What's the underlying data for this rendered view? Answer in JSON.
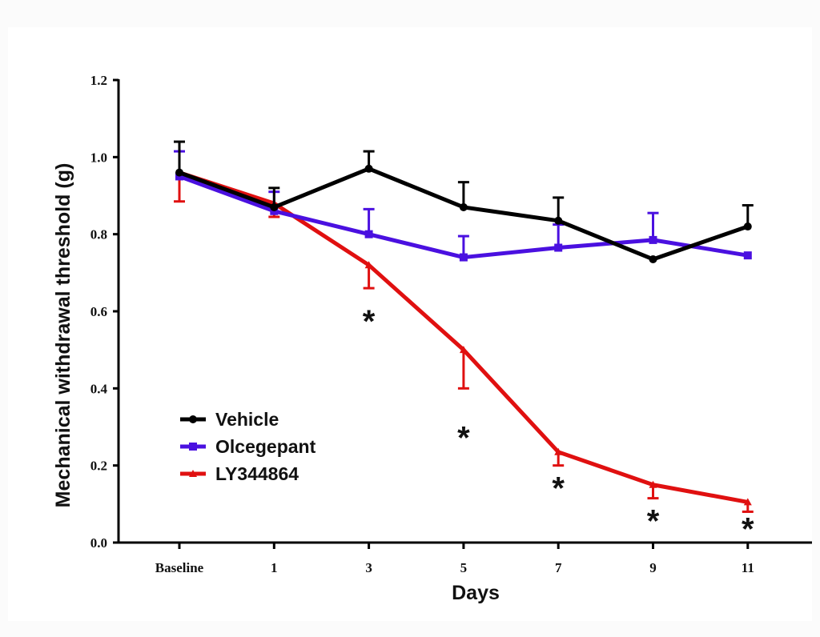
{
  "chart_data": {
    "type": "line",
    "title": "",
    "xlabel": "Days",
    "ylabel": "Mechanical withdrawal threshold (g)",
    "categories": [
      "Baseline",
      "1",
      "3",
      "5",
      "7",
      "9",
      "11"
    ],
    "ylim": [
      0,
      1.2
    ],
    "yticks": [
      "0.0",
      "0.2",
      "0.4",
      "0.6",
      "0.8",
      "1.0",
      "1.2"
    ],
    "grid": false,
    "legend_position": "bottom-left",
    "series": [
      {
        "name": "Vehicle",
        "color": "#000000",
        "values": [
          0.96,
          0.87,
          0.97,
          0.87,
          0.835,
          0.735,
          0.82
        ],
        "error": [
          0.08,
          0.05,
          0.045,
          0.065,
          0.06,
          0.0,
          0.055
        ],
        "error_direction": "up"
      },
      {
        "name": "Olcegepant",
        "color": "#4a10e0",
        "values": [
          0.95,
          0.86,
          0.8,
          0.74,
          0.765,
          0.785,
          0.745
        ],
        "error": [
          0.065,
          0.05,
          0.065,
          0.055,
          0.06,
          0.07,
          0.0
        ],
        "error_direction": "up"
      },
      {
        "name": "LY344864",
        "color": "#e01010",
        "values": [
          0.96,
          0.88,
          0.72,
          0.5,
          0.235,
          0.15,
          0.105
        ],
        "error": [
          0.075,
          0.035,
          0.06,
          0.1,
          0.035,
          0.035,
          0.025
        ],
        "error_direction": "down"
      }
    ],
    "annotations": [
      {
        "text": "*",
        "category": "3",
        "series": "LY344864"
      },
      {
        "text": "*",
        "category": "5",
        "series": "LY344864"
      },
      {
        "text": "*",
        "category": "7",
        "series": "LY344864"
      },
      {
        "text": "*",
        "category": "9",
        "series": "LY344864"
      },
      {
        "text": "*",
        "category": "11",
        "series": "LY344864"
      }
    ]
  }
}
